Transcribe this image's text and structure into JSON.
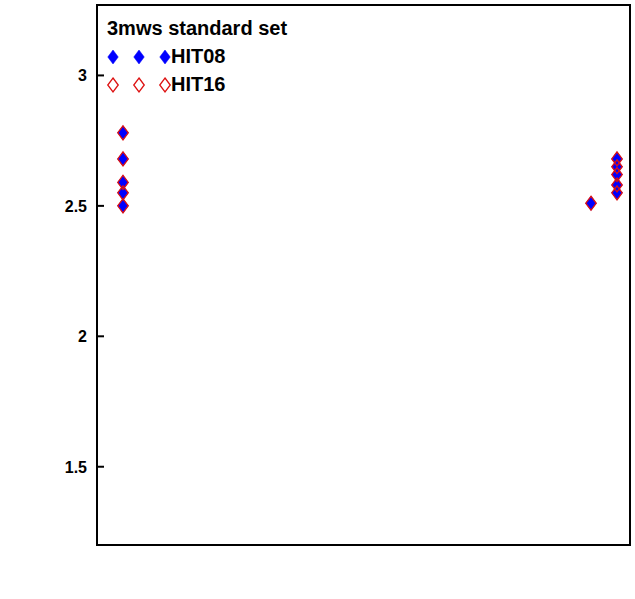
{
  "chart_data": {
    "type": "scatter",
    "title": "3mws standard set",
    "xlim": [
      0,
      20.5
    ],
    "ylim": [
      1.2,
      3.27
    ],
    "yticks": [
      1.5,
      2,
      2.5,
      3
    ],
    "tick_labels": "y",
    "legend": "upper left",
    "grid": false,
    "series": [
      {
        "name": "HIT08",
        "color": "#0000ff",
        "marker": "filled-diamond",
        "x": [
          1,
          1,
          1,
          1,
          1,
          19,
          20,
          20,
          20,
          20,
          20
        ],
        "values": [
          2.78,
          2.68,
          2.59,
          2.55,
          2.5,
          2.51,
          2.68,
          2.65,
          2.62,
          2.58,
          2.55
        ]
      },
      {
        "name": "HIT16",
        "color": "#dd1111",
        "marker": "open-diamond",
        "x": [
          1,
          1,
          1,
          1,
          1,
          19,
          20,
          20,
          20,
          20,
          20
        ],
        "values": [
          2.78,
          2.68,
          2.59,
          2.55,
          2.5,
          2.51,
          2.68,
          2.65,
          2.62,
          2.58,
          2.55
        ]
      }
    ]
  }
}
